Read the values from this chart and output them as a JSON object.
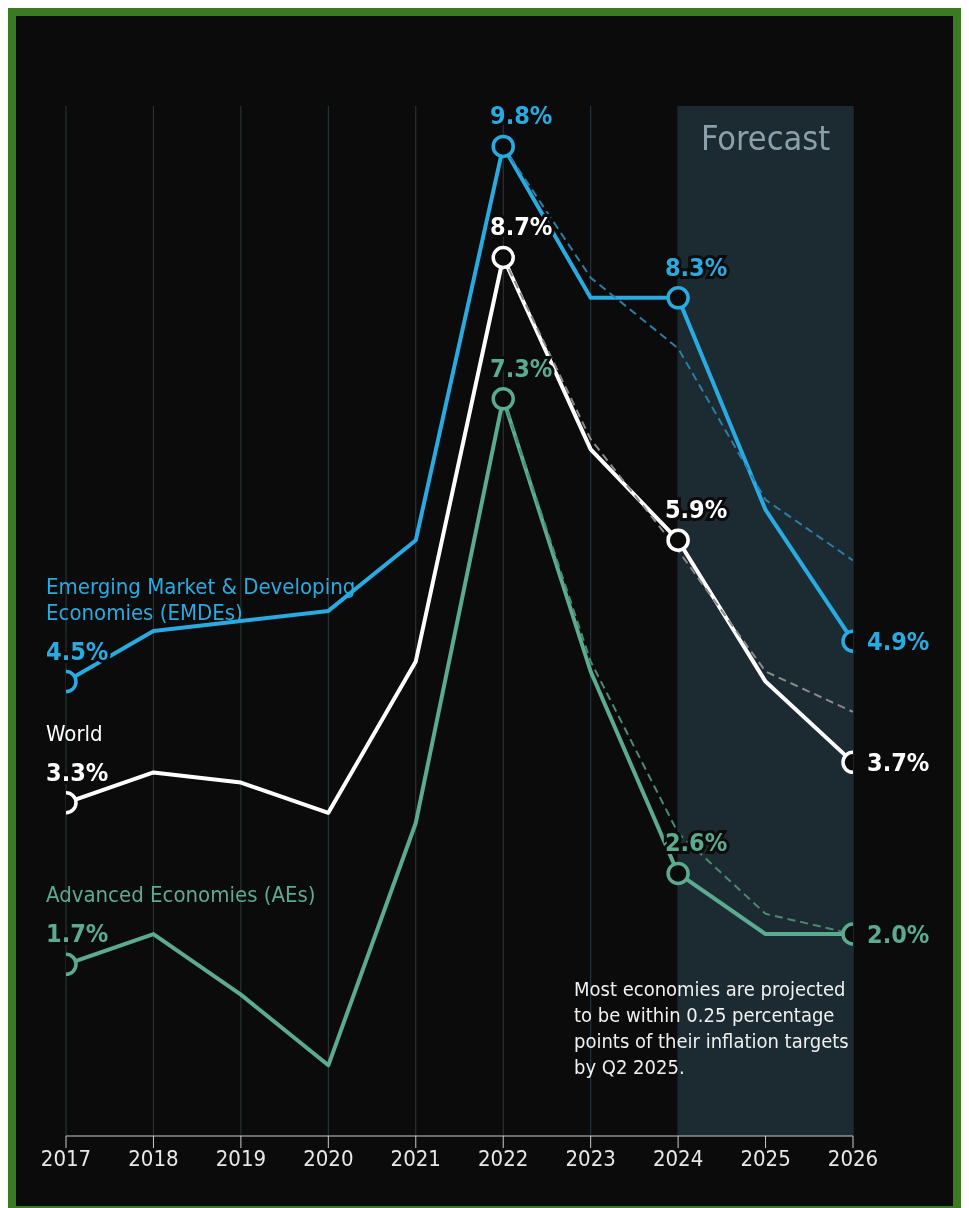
{
  "chart_data": {
    "type": "line",
    "categories": [
      "2017",
      "2018",
      "2019",
      "2020",
      "2021",
      "2022",
      "2023",
      "2024",
      "2025",
      "2026"
    ],
    "series": [
      {
        "name": "Emerging Market & Developing Economies (EMDEs)",
        "color": "#29abe2",
        "values": [
          4.5,
          5.0,
          5.1,
          5.2,
          5.9,
          9.8,
          8.3,
          8.3,
          6.2,
          4.9
        ],
        "value_labels": [
          "4.5%",
          null,
          null,
          null,
          null,
          "9.8%",
          null,
          "8.3%",
          null,
          "4.9%"
        ]
      },
      {
        "name": "World",
        "color": "#ffffff",
        "values": [
          3.3,
          3.6,
          3.5,
          3.2,
          4.7,
          8.7,
          6.8,
          5.9,
          4.5,
          3.7
        ],
        "value_labels": [
          "3.3%",
          null,
          null,
          null,
          null,
          "8.7%",
          null,
          "5.9%",
          null,
          "3.7%"
        ]
      },
      {
        "name": "Advanced Economies (AEs)",
        "color": "#5aab8f",
        "values": [
          1.7,
          2.0,
          1.4,
          0.7,
          3.1,
          7.3,
          4.6,
          2.6,
          2.0,
          2.0
        ],
        "value_labels": [
          "1.7%",
          null,
          null,
          null,
          null,
          "7.3%",
          null,
          "2.6%",
          null,
          "2.0%"
        ]
      },
      {
        "color": "#2a7ea8",
        "line_style": "dashed",
        "values": [
          null,
          null,
          null,
          null,
          null,
          9.8,
          8.5,
          7.8,
          6.3,
          5.7
        ]
      },
      {
        "color": "#8a8a8a",
        "line_style": "dashed",
        "values": [
          null,
          null,
          null,
          null,
          null,
          8.7,
          6.9,
          5.8,
          4.6,
          4.2
        ]
      },
      {
        "color": "#4a8a70",
        "line_style": "dashed",
        "values": [
          null,
          null,
          null,
          null,
          null,
          7.3,
          4.7,
          3.0,
          2.2,
          2.0
        ]
      }
    ],
    "ylim": [
      0,
      10.2
    ],
    "tick_labels": "x",
    "grid": "x",
    "legend": false,
    "line_style": "solid",
    "bands": [
      {
        "axis": "x",
        "from": "2024",
        "to": "2026",
        "label": "Forecast",
        "color": "#1c2a31"
      }
    ],
    "annotations": [
      "Most economies are projected to be within 0.25 percentage points of their inflation targets by Q2 2025."
    ]
  }
}
